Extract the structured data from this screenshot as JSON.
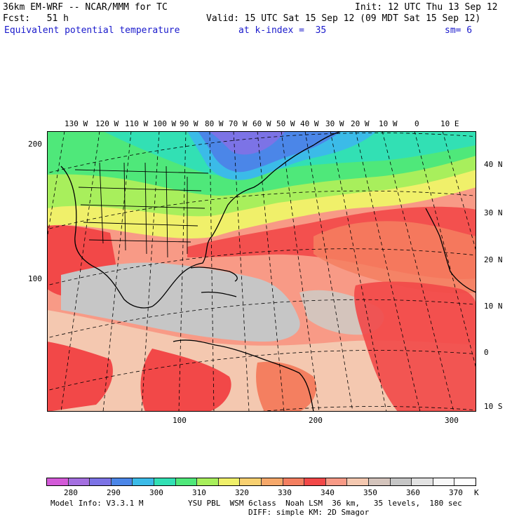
{
  "header": {
    "model": "36km EM-WRF -- NCAR/MMM for TC",
    "init": "Init: 12 UTC Thu 13 Sep 12",
    "fcst": "Fcst:   51 h",
    "valid": "Valid: 15 UTC Sat 15 Sep 12 (09 MDT Sat 15 Sep 12)",
    "field": "Equivalent potential temperature",
    "level": "at k-index =  35",
    "smooth": "sm= 6"
  },
  "map": {
    "top_lon_labels": [
      "130 W",
      "120 W",
      "110 W",
      "100 W",
      "90 W",
      "80 W",
      "70 W",
      "60 W",
      "50 W",
      "40 W",
      "30 W",
      "20 W",
      "10 W",
      "0",
      "10 E"
    ],
    "right_lat_labels": [
      "40 N",
      "30 N",
      "20 N",
      "10 N",
      "0",
      "10 S"
    ],
    "left_grid_labels": [
      "200",
      "100"
    ],
    "bottom_grid_labels": [
      "100",
      "200",
      "300"
    ]
  },
  "legend": {
    "colors": [
      "#d35ad8",
      "#a46fe0",
      "#7c73e6",
      "#4b86e8",
      "#3bbbe8",
      "#32e0b4",
      "#4fe87a",
      "#a8ef5c",
      "#f0f06a",
      "#f8d070",
      "#f6a86a",
      "#f47f60",
      "#f24848",
      "#f89a86",
      "#f4c8b0",
      "#d4c4bc",
      "#c6c6c6",
      "#e2e2e2",
      "#f8f8f8",
      "#fefefe"
    ],
    "tick_labels": [
      "280",
      "290",
      "300",
      "310",
      "320",
      "330",
      "340",
      "350",
      "360",
      "370",
      "K"
    ]
  },
  "footer": {
    "model_info": "Model Info: V3.3.1 M",
    "physics1": "YSU PBL  WSM 6class  Noah LSM  36 km,   35 levels,  180 sec",
    "physics2": "DIFF: simple KM: 2D Smagor"
  }
}
